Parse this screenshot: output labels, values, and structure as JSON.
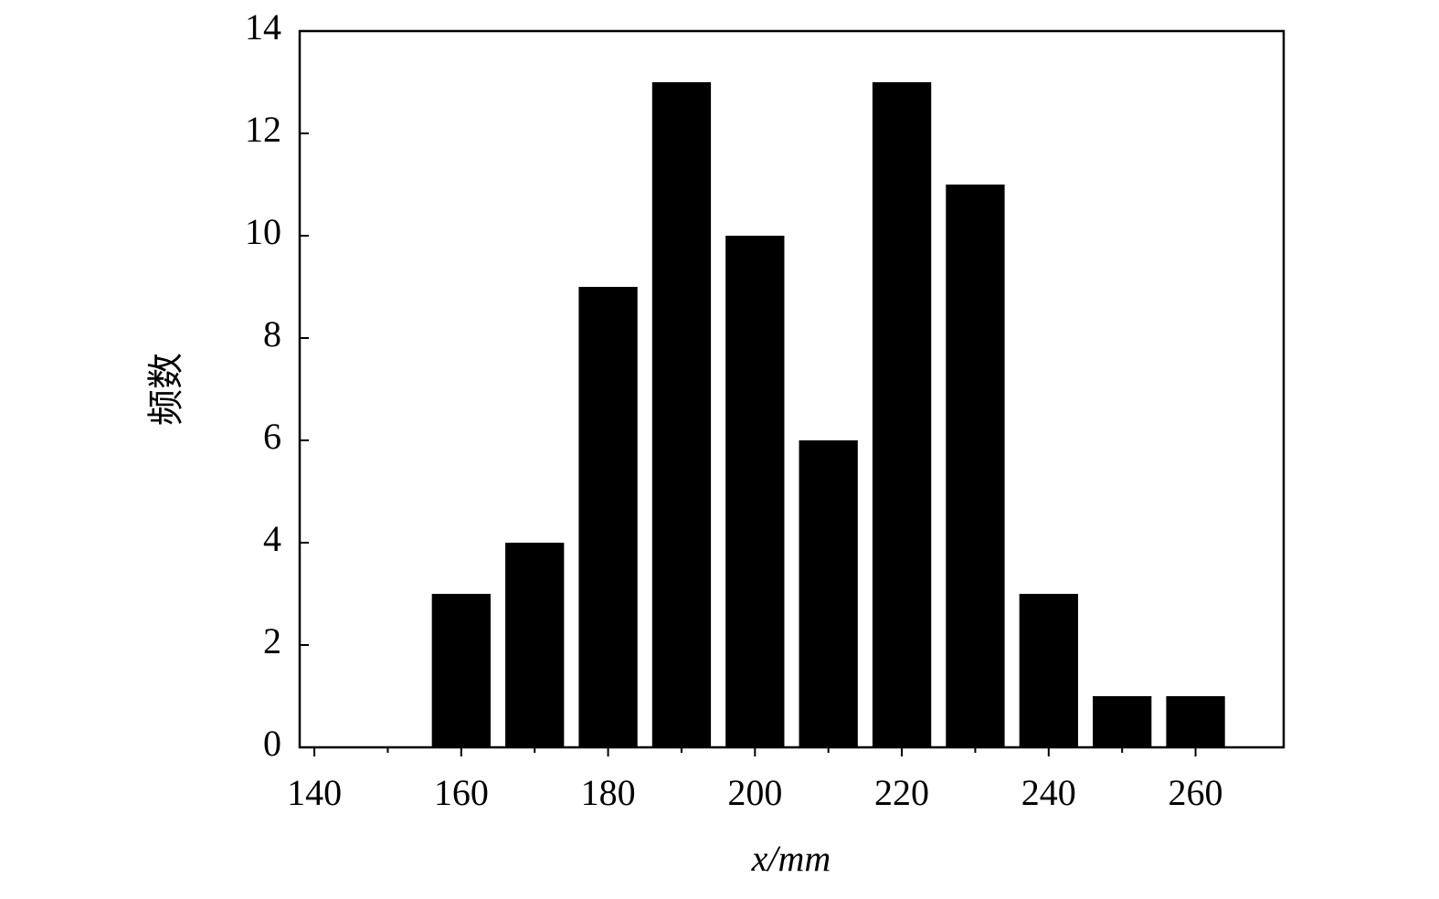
{
  "chart_data": {
    "type": "bar",
    "x": [
      160,
      170,
      180,
      190,
      200,
      210,
      220,
      230,
      240,
      250,
      260
    ],
    "values": [
      3,
      4,
      9,
      13,
      10,
      6,
      13,
      11,
      3,
      1,
      1
    ],
    "color": "#000000",
    "bar_width": 8,
    "xlim": [
      138,
      272
    ],
    "xticks": [
      140,
      160,
      180,
      200,
      220,
      240,
      260
    ],
    "xminorticks": [
      150,
      170,
      190,
      210,
      230,
      250
    ],
    "ylim": [
      0,
      14
    ],
    "yticks": [
      0,
      2,
      4,
      6,
      8,
      10,
      12,
      14
    ],
    "xlabel": "x/mm",
    "ylabel": "频数",
    "grid": false
  }
}
